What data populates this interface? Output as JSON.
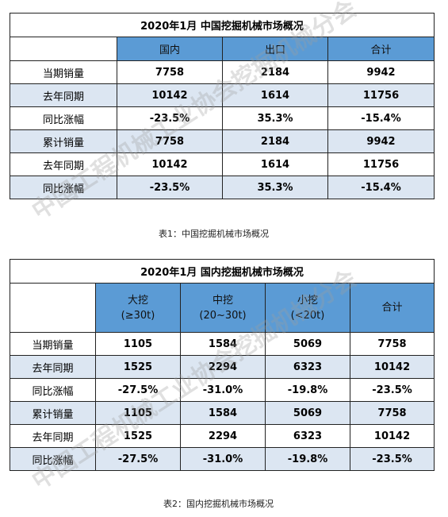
{
  "table1": {
    "title": "2020年1月  中国挖掘机械市场概况",
    "headers": [
      "国内",
      "出口",
      "合计"
    ],
    "rows": [
      {
        "label": "当期销量",
        "values": [
          "7758",
          "2184",
          "9942"
        ]
      },
      {
        "label": "去年同期",
        "values": [
          "10142",
          "1614",
          "11756"
        ]
      },
      {
        "label": "同比涨幅",
        "values": [
          "-23.5%",
          "35.3%",
          "-15.4%"
        ]
      },
      {
        "label": "累计销量",
        "values": [
          "7758",
          "2184",
          "9942"
        ]
      },
      {
        "label": "去年同期",
        "values": [
          "10142",
          "1614",
          "11756"
        ]
      },
      {
        "label": "同比涨幅",
        "values": [
          "-23.5%",
          "35.3%",
          "-15.4%"
        ]
      }
    ],
    "caption": "表1：中国挖掘机械市场概况"
  },
  "table2": {
    "title": "2020年1月  国内挖掘机械市场概况",
    "headers": [
      {
        "line1": "大挖",
        "line2": "(≥30t)"
      },
      {
        "line1": "中挖",
        "line2": "(20~30t)"
      },
      {
        "line1": "小挖",
        "line2": "(<20t)"
      },
      {
        "line1": "合计",
        "line2": ""
      }
    ],
    "rows": [
      {
        "label": "当期销量",
        "values": [
          "1105",
          "1584",
          "5069",
          "7758"
        ]
      },
      {
        "label": "去年同期",
        "values": [
          "1525",
          "2294",
          "6323",
          "10142"
        ]
      },
      {
        "label": "同比涨幅",
        "values": [
          "-27.5%",
          "-31.0%",
          "-19.8%",
          "-23.5%"
        ]
      },
      {
        "label": "累计销量",
        "values": [
          "1105",
          "1584",
          "5069",
          "7758"
        ]
      },
      {
        "label": "去年同期",
        "values": [
          "1525",
          "2294",
          "6323",
          "10142"
        ]
      },
      {
        "label": "同比涨幅",
        "values": [
          "-27.5%",
          "-31.0%",
          "-19.8%",
          "-23.5%"
        ]
      }
    ],
    "caption": "表2：国内挖掘机械市场概况"
  },
  "watermark": "中国工程机械工业协会挖掘机械分会"
}
